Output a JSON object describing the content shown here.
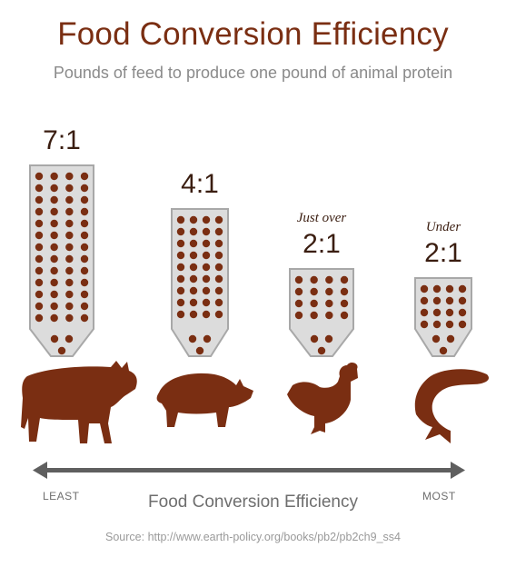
{
  "chart_data": {
    "type": "bar",
    "title": "Food Conversion Efficiency",
    "subtitle": "Pounds of feed to produce one pound of animal protein",
    "categories": [
      "cow",
      "pig",
      "chicken",
      "fish"
    ],
    "values": [
      7,
      4,
      2,
      2
    ],
    "value_labels": [
      "7:1",
      "4:1",
      "2:1",
      "2:1"
    ],
    "qualifiers": [
      "",
      "",
      "Just over",
      "Under"
    ],
    "axis": {
      "label": "Food Conversion Efficiency",
      "left_end": "LEAST",
      "right_end": "MOST"
    },
    "source": "Source: http://www.earth-policy.org/books/pb2/pb2ch9_ss4",
    "colors": {
      "brown": "#7a2e12",
      "bin_fill": "#dcdcdc",
      "bin_stroke": "#a8a8a8",
      "arrow": "#5f5f5f"
    },
    "icons": [
      "cow-icon",
      "pig-icon",
      "chicken-icon",
      "fish-icon"
    ]
  }
}
